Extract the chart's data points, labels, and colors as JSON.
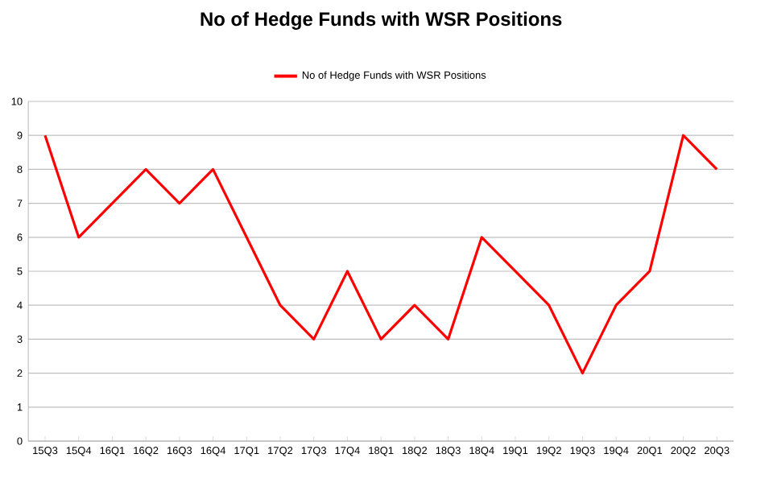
{
  "chart_data": {
    "type": "line",
    "title": "No of Hedge Funds with WSR Positions",
    "categories": [
      "15Q3",
      "15Q4",
      "16Q1",
      "16Q2",
      "16Q3",
      "16Q4",
      "17Q1",
      "17Q2",
      "17Q3",
      "17Q4",
      "18Q1",
      "18Q2",
      "18Q3",
      "18Q4",
      "19Q1",
      "19Q2",
      "19Q3",
      "19Q4",
      "20Q1",
      "20Q2",
      "20Q3"
    ],
    "series": [
      {
        "name": "No of Hedge Funds with WSR Positions",
        "color": "#ff0000",
        "values": [
          9,
          6,
          7,
          8,
          7,
          8,
          6,
          4,
          3,
          5,
          3,
          4,
          3,
          6,
          5,
          4,
          2,
          4,
          5,
          9,
          8
        ]
      }
    ],
    "ylim": [
      0,
      10
    ],
    "yticks": [
      0,
      1,
      2,
      3,
      4,
      5,
      6,
      7,
      8,
      9,
      10
    ],
    "grid": "y",
    "legend": "top"
  }
}
